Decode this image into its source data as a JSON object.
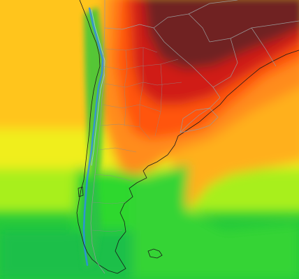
{
  "map": {
    "region": "southern-south-america",
    "colors": {
      "extreme_hot": "#6e1d1d",
      "very_hot": "#c81414",
      "hot": "#ff4a10",
      "warm": "#ff8c1a",
      "mild": "#ffc21f",
      "cool": "#f2f21a",
      "cold": "#a8f01a",
      "very_cold": "#2ed82e",
      "coldest": "#16b35a",
      "mountain_ice": "#2f86ff"
    },
    "elements": [
      "temperature-field",
      "coastline",
      "country-borders",
      "province-borders",
      "andes-ridge",
      "falkland-islands"
    ]
  }
}
